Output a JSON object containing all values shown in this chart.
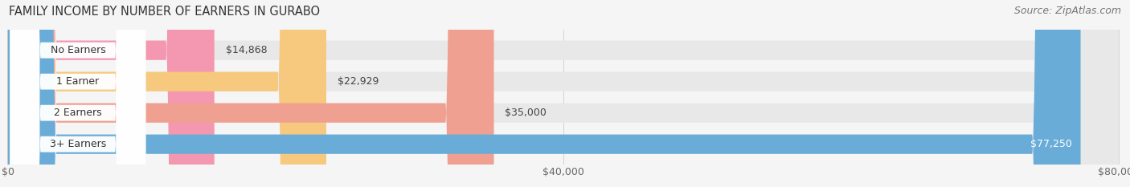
{
  "title": "FAMILY INCOME BY NUMBER OF EARNERS IN GURABO",
  "source": "Source: ZipAtlas.com",
  "categories": [
    "No Earners",
    "1 Earner",
    "2 Earners",
    "3+ Earners"
  ],
  "values": [
    14868,
    22929,
    35000,
    77250
  ],
  "bar_colors": [
    "#f497b0",
    "#f6c97e",
    "#f0a090",
    "#6aacd8"
  ],
  "value_labels": [
    "$14,868",
    "$22,929",
    "$35,000",
    "$77,250"
  ],
  "xmax": 80000,
  "xticks": [
    0,
    40000,
    80000
  ],
  "xtick_labels": [
    "$0",
    "$40,000",
    "$80,000"
  ],
  "bg_color": "#f5f5f5",
  "bar_track_color": "#e8e8e8",
  "label_box_color": "#ffffff",
  "title_fontsize": 10.5,
  "source_fontsize": 9,
  "bar_label_fontsize": 9,
  "value_label_fontsize": 9,
  "tick_fontsize": 9
}
